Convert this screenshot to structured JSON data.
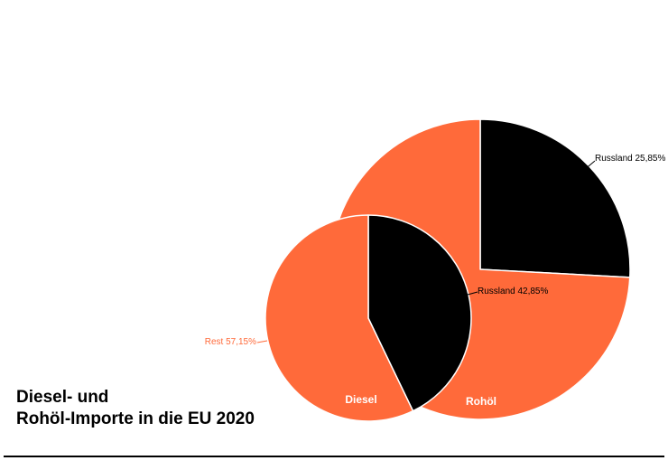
{
  "colors": {
    "russland": "#000000",
    "rest": "#ff6a3a",
    "background": "#ffffff",
    "text": "#000000"
  },
  "title": {
    "line1": "Diesel- und",
    "line2": "Rohöl-Importe in die EU 2020"
  },
  "chart_data": [
    {
      "type": "pie",
      "name": "Rohöl",
      "slices": [
        {
          "label": "Russland",
          "value": 25.85,
          "label_text": "Russland 25,85%",
          "color": "#000000"
        },
        {
          "label": "Rest",
          "value": 74.15,
          "label_text": "",
          "color": "#ff6a3a"
        }
      ]
    },
    {
      "type": "pie",
      "name": "Diesel",
      "slices": [
        {
          "label": "Russland",
          "value": 42.85,
          "label_text": "Russland 42,85%",
          "color": "#000000"
        },
        {
          "label": "Rest",
          "value": 57.15,
          "label_text": "Rest 57,15%",
          "color": "#ff6a3a"
        }
      ]
    }
  ]
}
